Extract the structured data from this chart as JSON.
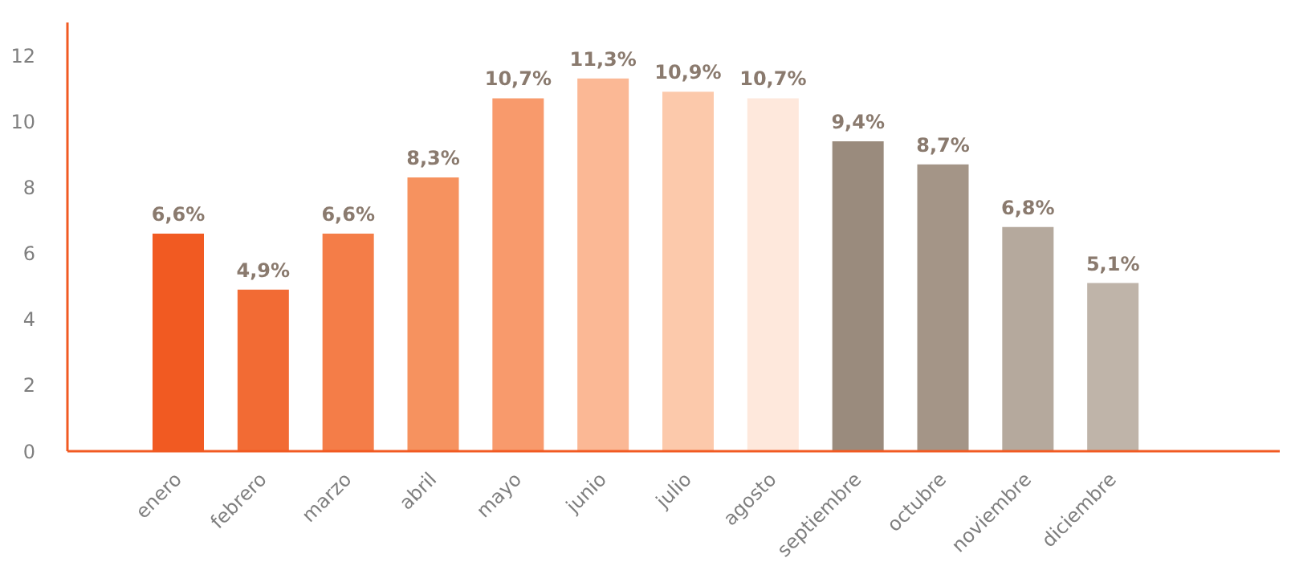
{
  "chart_data": {
    "type": "bar",
    "categories": [
      "enero",
      "febrero",
      "marzo",
      "abril",
      "mayo",
      "junio",
      "julio",
      "agosto",
      "septiembre",
      "octubre",
      "noviembre",
      "diciembre"
    ],
    "values": [
      6.6,
      4.9,
      6.6,
      8.3,
      10.7,
      11.3,
      10.9,
      10.7,
      9.4,
      8.7,
      6.8,
      5.1
    ],
    "colors": [
      "#f15a22",
      "#f26b34",
      "#f47d48",
      "#f6925f",
      "#f89a6c",
      "#fbb895",
      "#fcc9ab",
      "#fee8dc",
      "#9a8b7d",
      "#a49587",
      "#b5a99d",
      "#bfb4a9"
    ],
    "value_labels": [
      "6,6%",
      "4,9%",
      "6,6%",
      "8,3%",
      "10,7%",
      "11,3%",
      "10,9%",
      "10,7%",
      "9,4%",
      "8,7%",
      "6,8%",
      "5,1%"
    ],
    "ylim": [
      0,
      13
    ],
    "yticks": [
      0,
      2,
      4,
      6,
      8,
      10,
      12
    ],
    "grid": false,
    "legend": false
  }
}
